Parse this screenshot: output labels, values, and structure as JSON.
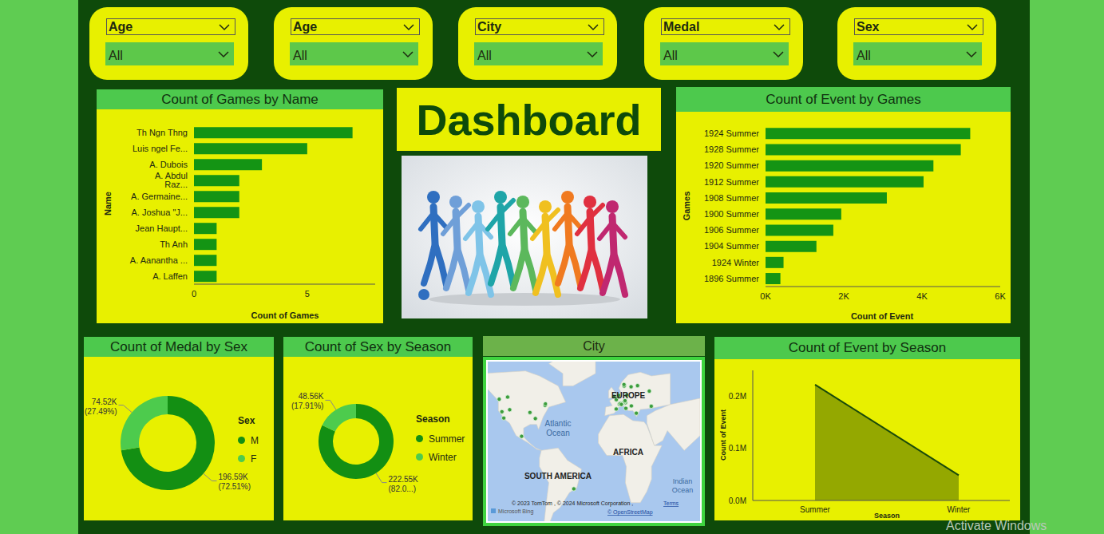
{
  "slicers": [
    {
      "label": "Age",
      "value": "All"
    },
    {
      "label": "Age",
      "value": "All"
    },
    {
      "label": "City",
      "value": "All"
    },
    {
      "label": "Medal",
      "value": "All"
    },
    {
      "label": "Sex",
      "value": "All"
    }
  ],
  "header": {
    "title": "Dashboard"
  },
  "chart_data": [
    {
      "type": "bar",
      "orientation": "horizontal",
      "title": "Count of Games by Name",
      "xlabel": "Count of Games",
      "ylabel": "Name",
      "categories": [
        "Th Ngn Thng",
        "Luis ngel Fe...",
        "A. Dubois",
        "A. Abdul Raz...",
        "A. Germaine...",
        "A. Joshua \"J...",
        "Jean Haupt...",
        "Th Anh",
        "A. Aanantha ...",
        "A. Laffen"
      ],
      "values": [
        7,
        5,
        3,
        2,
        2,
        2,
        1,
        1,
        1,
        1
      ],
      "color": "#149414",
      "xlim": [
        0,
        8
      ],
      "xticks": [
        0,
        5
      ]
    },
    {
      "type": "bar",
      "orientation": "horizontal",
      "title": "Count of Event by Games",
      "xlabel": "Count of Event",
      "ylabel": "Games",
      "categories": [
        "1924 Summer",
        "1928 Summer",
        "1920 Summer",
        "1912 Summer",
        "1908 Summer",
        "1900 Summer",
        "1906 Summer",
        "1904 Summer",
        "1924 Winter",
        "1896 Summer"
      ],
      "values": [
        5233,
        4992,
        4292,
        4040,
        3101,
        1936,
        1733,
        1301,
        460,
        380
      ],
      "color": "#149414",
      "xlim": [
        0,
        6000
      ],
      "xticks": [
        {
          "value": 0,
          "label": "0K"
        },
        {
          "value": 2000,
          "label": "2K"
        },
        {
          "value": 4000,
          "label": "4K"
        },
        {
          "value": 6000,
          "label": "6K"
        }
      ]
    },
    {
      "type": "pie",
      "title": "Count of Medal by Sex",
      "legend_title": "Sex",
      "legend": "right",
      "categories": [
        "M",
        "F"
      ],
      "values": [
        196590,
        74520
      ],
      "value_labels": [
        "196.59K (72.51%)",
        "74.52K (27.49%)"
      ],
      "colors": [
        "#138f13",
        "#4dcb4d"
      ]
    },
    {
      "type": "pie",
      "title": "Count of Sex by Season",
      "legend_title": "Season",
      "legend": "right",
      "categories": [
        "Summer",
        "Winter"
      ],
      "values": [
        222550,
        48560
      ],
      "value_labels": [
        "222.55K (82.0...)",
        "48.56K (17.91%)"
      ],
      "colors": [
        "#138f13",
        "#4dcb4d"
      ]
    },
    {
      "type": "area",
      "title": "Count of Event by Season",
      "xlabel": "Season",
      "ylabel": "Count of Event",
      "categories": [
        "Summer",
        "Winter"
      ],
      "values": [
        222552,
        48564
      ],
      "color": "#94a800",
      "ylim": [
        0,
        250000
      ],
      "yticks": [
        {
          "value": 0,
          "label": "0.0M"
        },
        {
          "value": 100000,
          "label": "0.1M"
        },
        {
          "value": 200000,
          "label": "0.2M"
        }
      ]
    }
  ],
  "map": {
    "title": "City",
    "place_labels": [
      "EUROPE",
      "AFRICA",
      "SOUTH AMERICA",
      "Atlantic Ocean",
      "Indian Ocean"
    ],
    "attribution": [
      "© 2023 TomTom , © 2024 Microsoft Corporation ,",
      "Terms",
      "© OpenStreetMap"
    ],
    "logo": "Microsoft Bing",
    "points": [
      [
        23.7,
        38.0
      ],
      [
        2.3,
        48.9
      ],
      [
        -90.2,
        38.6
      ],
      [
        -0.1,
        51.5
      ],
      [
        18.1,
        59.3
      ],
      [
        4.4,
        51.2
      ],
      [
        6.9,
        45.9
      ],
      [
        4.9,
        52.4
      ],
      [
        9.8,
        46.5
      ],
      [
        -118.2,
        34.1
      ],
      [
        -74.0,
        44.3
      ],
      [
        13.4,
        52.5
      ],
      [
        11.1,
        47.5
      ],
      [
        25.0,
        60.2
      ],
      [
        10.7,
        59.9
      ],
      [
        12.1,
        46.5
      ],
      [
        -120.2,
        39.2
      ],
      [
        12.5,
        41.9
      ],
      [
        11.4,
        47.3
      ],
      [
        -99.1,
        19.4
      ],
      [
        5.7,
        45.2
      ],
      [
        11.6,
        48.1
      ],
      [
        -73.6,
        45.5
      ],
      [
        37.6,
        55.8
      ],
      [
        18.4,
        43.9
      ],
      [
        -114.1,
        51.0
      ],
      [
        2.2,
        41.4
      ],
      [
        6.4,
        45.7
      ],
      [
        10.5,
        61.1
      ],
      [
        -84.4,
        33.7
      ],
      [
        -111.9,
        40.8
      ],
      [
        7.7,
        45.1
      ],
      [
        -123.1,
        49.3
      ],
      [
        39.7,
        43.6
      ],
      [
        -43.2,
        -22.9
      ]
    ]
  },
  "watermark": "Activate Windows"
}
